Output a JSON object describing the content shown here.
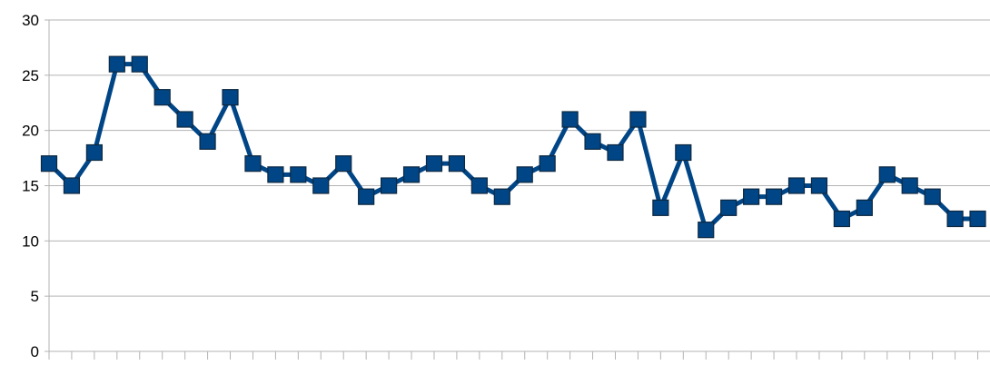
{
  "chart_data": {
    "type": "line",
    "title": "",
    "xlabel": "",
    "ylabel": "",
    "ylim": [
      0,
      30
    ],
    "yticks": [
      "0",
      "5",
      "10",
      "15",
      "20",
      "25",
      "30"
    ],
    "grid": true,
    "legend": "none",
    "marker": "square",
    "series": [
      {
        "color": "#004586",
        "values": [
          17,
          15,
          18,
          26,
          26,
          23,
          21,
          19,
          23,
          17,
          16,
          16,
          15,
          17,
          14,
          15,
          16,
          17,
          17,
          15,
          14,
          16,
          17,
          21,
          19,
          18,
          21,
          13,
          18,
          11,
          13,
          14,
          14,
          15,
          15,
          12,
          13,
          16,
          15,
          14,
          12,
          12
        ]
      }
    ]
  }
}
